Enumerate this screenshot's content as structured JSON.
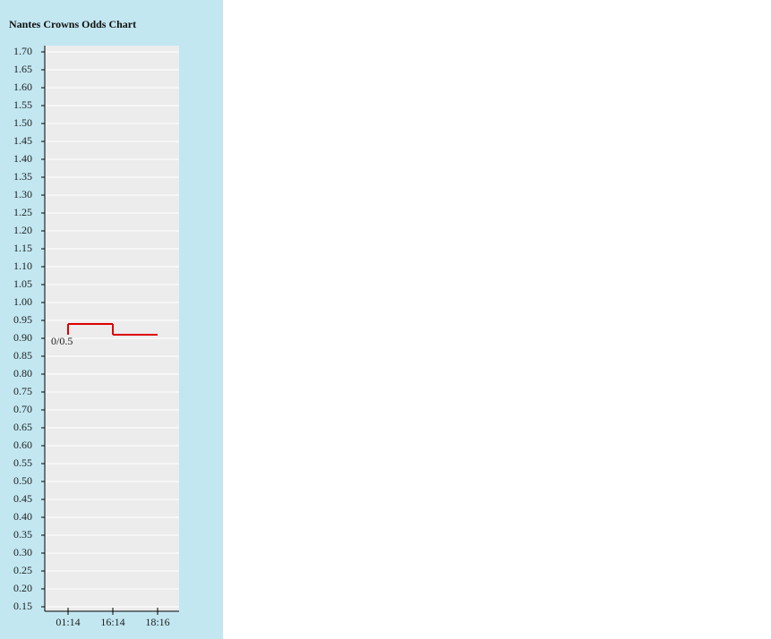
{
  "chart_data": {
    "type": "step-line",
    "title": "Nantes Crowns Odds Chart",
    "categories": [
      "01:14",
      "16:14",
      "18:16"
    ],
    "values": [
      0.94,
      0.91,
      0.91
    ],
    "color": "#dd0000",
    "annotation": {
      "text": "0/0.5",
      "value": 0.91
    },
    "ylim": [
      0.15,
      1.7
    ],
    "yticks": [
      {
        "value": 0.15,
        "label": "0.15"
      },
      {
        "value": 0.2,
        "label": "0.20"
      },
      {
        "value": 0.25,
        "label": "0.25"
      },
      {
        "value": 0.3,
        "label": "0.30"
      },
      {
        "value": 0.35,
        "label": "0.35"
      },
      {
        "value": 0.4,
        "label": "0.40"
      },
      {
        "value": 0.45,
        "label": "0.45"
      },
      {
        "value": 0.5,
        "label": "0.50"
      },
      {
        "value": 0.55,
        "label": "0.55"
      },
      {
        "value": 0.6,
        "label": "0.60"
      },
      {
        "value": 0.65,
        "label": "0.65"
      },
      {
        "value": 0.7,
        "label": "0.70"
      },
      {
        "value": 0.75,
        "label": "0.75"
      },
      {
        "value": 0.8,
        "label": "0.80"
      },
      {
        "value": 0.85,
        "label": "0.85"
      },
      {
        "value": 0.9,
        "label": "0.90"
      },
      {
        "value": 0.95,
        "label": "0.95"
      },
      {
        "value": 1.0,
        "label": "1.00"
      },
      {
        "value": 1.05,
        "label": "1.05"
      },
      {
        "value": 1.1,
        "label": "1.10"
      },
      {
        "value": 1.15,
        "label": "1.15"
      },
      {
        "value": 1.2,
        "label": "1.20"
      },
      {
        "value": 1.25,
        "label": "1.25"
      },
      {
        "value": 1.3,
        "label": "1.30"
      },
      {
        "value": 1.35,
        "label": "1.35"
      },
      {
        "value": 1.4,
        "label": "1.40"
      },
      {
        "value": 1.45,
        "label": "1.45"
      },
      {
        "value": 1.5,
        "label": "1.50"
      },
      {
        "value": 1.55,
        "label": "1.55"
      },
      {
        "value": 1.6,
        "label": "1.60"
      },
      {
        "value": 1.65,
        "label": "1.65"
      },
      {
        "value": 1.7,
        "label": "1.70"
      }
    ],
    "grid": true
  }
}
